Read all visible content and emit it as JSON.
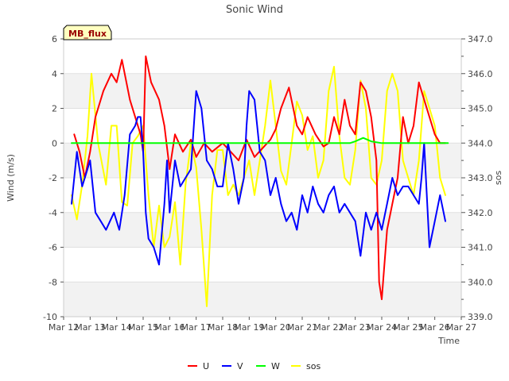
{
  "chart_data": {
    "type": "line",
    "title": "Sonic Wind",
    "xlabel": "Time",
    "ylabel": "Wind (m/s)",
    "y2label": "sos",
    "badge": "MB_flux",
    "xlim": [
      12,
      27
    ],
    "ylim": [
      -10,
      6
    ],
    "y2lim": [
      339.0,
      347.0
    ],
    "x_ticks": [
      {
        "v": 12,
        "label": "Mar 12"
      },
      {
        "v": 13,
        "label": "Mar 13"
      },
      {
        "v": 14,
        "label": "Mar 14"
      },
      {
        "v": 15,
        "label": "Mar 15"
      },
      {
        "v": 16,
        "label": "Mar 16"
      },
      {
        "v": 17,
        "label": "Mar 17"
      },
      {
        "v": 18,
        "label": "Mar 18"
      },
      {
        "v": 19,
        "label": "Mar 19"
      },
      {
        "v": 20,
        "label": "Mar 20"
      },
      {
        "v": 21,
        "label": "Mar 21"
      },
      {
        "v": 22,
        "label": "Mar 22"
      },
      {
        "v": 23,
        "label": "Mar 23"
      },
      {
        "v": 24,
        "label": "Mar 24"
      },
      {
        "v": 25,
        "label": "Mar 25"
      },
      {
        "v": 26,
        "label": "Mar 26"
      },
      {
        "v": 27,
        "label": "Mar 27"
      }
    ],
    "y_ticks": [
      {
        "v": -10,
        "label": "-10"
      },
      {
        "v": -8,
        "label": "-8"
      },
      {
        "v": -6,
        "label": "-6"
      },
      {
        "v": -4,
        "label": "-4"
      },
      {
        "v": -2,
        "label": "-2"
      },
      {
        "v": 0,
        "label": "0"
      },
      {
        "v": 2,
        "label": "2"
      },
      {
        "v": 4,
        "label": "4"
      },
      {
        "v": 6,
        "label": "6"
      }
    ],
    "y2_ticks": [
      {
        "v": 339.0,
        "label": "339.0"
      },
      {
        "v": 340.0,
        "label": "340.0"
      },
      {
        "v": 341.0,
        "label": "341.0"
      },
      {
        "v": 342.0,
        "label": "342.0"
      },
      {
        "v": 343.0,
        "label": "343.0"
      },
      {
        "v": 344.0,
        "label": "344.0"
      },
      {
        "v": 345.0,
        "label": "345.0"
      },
      {
        "v": 346.0,
        "label": "346.0"
      },
      {
        "v": 347.0,
        "label": "347.0"
      }
    ],
    "series": [
      {
        "name": "U",
        "color": "#ff0000",
        "axis": "left",
        "x": [
          12.4,
          12.6,
          12.8,
          13.0,
          13.2,
          13.5,
          13.8,
          14.0,
          14.2,
          14.5,
          14.7,
          14.9,
          15.0,
          15.1,
          15.3,
          15.6,
          15.8,
          16.0,
          16.2,
          16.5,
          16.8,
          17.0,
          17.3,
          17.6,
          18.0,
          18.3,
          18.6,
          18.9,
          19.2,
          19.5,
          19.8,
          20.0,
          20.2,
          20.5,
          20.8,
          21.0,
          21.2,
          21.5,
          21.8,
          22.0,
          22.2,
          22.4,
          22.6,
          22.8,
          23.0,
          23.2,
          23.4,
          23.6,
          23.8,
          23.9,
          24.0,
          24.2,
          24.4,
          24.6,
          24.8,
          25.0,
          25.2,
          25.4,
          25.6,
          25.8,
          26.0,
          26.2,
          26.4
        ],
        "values": [
          0.5,
          -0.5,
          -2.0,
          -0.5,
          1.5,
          3.0,
          4.0,
          3.5,
          4.8,
          2.5,
          1.5,
          0.5,
          -0.5,
          5.0,
          3.5,
          2.5,
          1.0,
          -1.5,
          0.5,
          -0.5,
          0.2,
          -0.8,
          0.0,
          -0.5,
          0.0,
          -0.5,
          -1.0,
          0.2,
          -0.8,
          -0.3,
          0.2,
          0.8,
          2.0,
          3.2,
          1.0,
          0.5,
          1.5,
          0.5,
          -0.2,
          0.0,
          1.5,
          0.5,
          2.5,
          1.0,
          0.5,
          3.5,
          3.0,
          1.5,
          -1.0,
          -8.0,
          -9.0,
          -5.0,
          -3.5,
          -2.0,
          1.5,
          0.0,
          1.0,
          3.5,
          2.5,
          1.5,
          0.5,
          0.0,
          0.0
        ]
      },
      {
        "name": "V",
        "color": "#0000ff",
        "axis": "left",
        "x": [
          12.3,
          12.5,
          12.7,
          12.9,
          13.0,
          13.2,
          13.4,
          13.6,
          13.9,
          14.1,
          14.3,
          14.5,
          14.7,
          14.8,
          14.9,
          15.0,
          15.1,
          15.2,
          15.4,
          15.6,
          15.8,
          15.9,
          16.0,
          16.2,
          16.4,
          16.6,
          16.8,
          17.0,
          17.2,
          17.4,
          17.6,
          17.8,
          18.0,
          18.2,
          18.4,
          18.6,
          18.8,
          18.9,
          19.0,
          19.2,
          19.4,
          19.6,
          19.8,
          20.0,
          20.2,
          20.4,
          20.6,
          20.8,
          21.0,
          21.2,
          21.4,
          21.6,
          21.8,
          22.0,
          22.2,
          22.4,
          22.6,
          22.8,
          23.0,
          23.2,
          23.4,
          23.6,
          23.8,
          24.0,
          24.2,
          24.4,
          24.6,
          24.8,
          25.0,
          25.2,
          25.4,
          25.5,
          25.6,
          25.8,
          26.0,
          26.2,
          26.4
        ],
        "values": [
          -3.5,
          -0.5,
          -2.5,
          -1.5,
          -1.0,
          -4.0,
          -4.5,
          -5.0,
          -4.0,
          -5.0,
          -3.0,
          0.5,
          1.0,
          1.5,
          1.5,
          -0.5,
          -4.0,
          -5.5,
          -6.0,
          -7.0,
          -3.5,
          -1.0,
          -4.0,
          -1.0,
          -2.5,
          -2.0,
          -1.5,
          3.0,
          2.0,
          -1.0,
          -1.5,
          -2.5,
          -2.5,
          0.0,
          -1.5,
          -3.5,
          -2.0,
          1.0,
          3.0,
          2.5,
          -0.5,
          -1.0,
          -3.0,
          -2.0,
          -3.5,
          -4.5,
          -4.0,
          -5.0,
          -3.0,
          -4.0,
          -2.5,
          -3.5,
          -4.0,
          -3.0,
          -2.5,
          -4.0,
          -3.5,
          -4.0,
          -4.5,
          -6.5,
          -4.0,
          -5.0,
          -4.0,
          -5.0,
          -3.5,
          -2.0,
          -3.0,
          -2.5,
          -2.5,
          -3.0,
          -3.5,
          -2.0,
          0.0,
          -6.0,
          -4.5,
          -3.0,
          -4.5
        ]
      },
      {
        "name": "W",
        "color": "#00ff00",
        "axis": "left",
        "x": [
          12.3,
          13.0,
          14.0,
          15.0,
          16.0,
          17.0,
          18.0,
          19.0,
          20.0,
          21.0,
          22.0,
          22.8,
          23.0,
          23.3,
          23.6,
          24.0,
          25.0,
          26.0,
          26.5
        ],
        "values": [
          0.0,
          0.0,
          0.0,
          0.0,
          0.0,
          0.0,
          0.0,
          0.0,
          0.0,
          0.0,
          0.0,
          0.0,
          0.1,
          0.3,
          0.1,
          0.0,
          0.0,
          0.0,
          0.0
        ]
      },
      {
        "name": "sos",
        "color": "#ffff00",
        "axis": "right",
        "x": [
          12.3,
          12.5,
          12.7,
          12.9,
          13.05,
          13.3,
          13.6,
          13.8,
          14.0,
          14.2,
          14.4,
          14.6,
          14.8,
          15.0,
          15.2,
          15.4,
          15.6,
          15.8,
          16.0,
          16.2,
          16.4,
          16.6,
          16.8,
          17.0,
          17.2,
          17.4,
          17.6,
          17.8,
          18.0,
          18.2,
          18.4,
          18.6,
          18.8,
          19.0,
          19.2,
          19.4,
          19.6,
          19.8,
          20.0,
          20.2,
          20.4,
          20.6,
          20.8,
          21.0,
          21.2,
          21.4,
          21.6,
          21.8,
          22.0,
          22.2,
          22.4,
          22.6,
          22.8,
          23.0,
          23.2,
          23.4,
          23.6,
          23.8,
          24.0,
          24.2,
          24.4,
          24.6,
          24.8,
          25.0,
          25.2,
          25.4,
          25.6,
          25.8,
          26.0,
          26.2,
          26.4
        ],
        "values": [
          342.5,
          341.8,
          342.8,
          344.2,
          346.0,
          344.0,
          342.8,
          344.5,
          344.5,
          342.3,
          342.2,
          344.0,
          344.2,
          344.5,
          342.5,
          341.0,
          342.2,
          341.0,
          341.3,
          342.3,
          340.5,
          342.8,
          344.0,
          343.3,
          341.5,
          339.3,
          342.5,
          343.8,
          343.8,
          342.5,
          342.8,
          342.5,
          343.0,
          343.5,
          342.5,
          343.5,
          344.5,
          345.8,
          344.5,
          343.2,
          342.8,
          344.0,
          345.2,
          344.8,
          343.8,
          344.2,
          343.0,
          343.5,
          345.5,
          346.2,
          344.2,
          343.0,
          342.8,
          343.8,
          345.8,
          345.0,
          343.0,
          342.8,
          343.5,
          345.5,
          346.0,
          345.5,
          343.5,
          343.0,
          342.5,
          343.5,
          345.5,
          345.0,
          344.5,
          343.0,
          342.5
        ]
      }
    ]
  }
}
